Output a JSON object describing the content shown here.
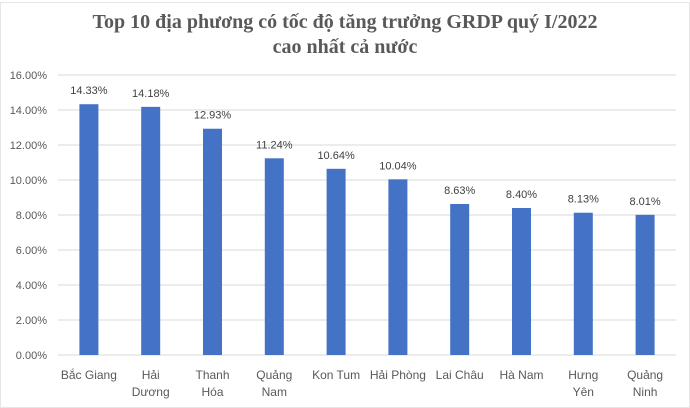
{
  "chart_data": {
    "type": "bar",
    "title_line1": "Top 10 địa phương có tốc độ tăng trưởng GRDP quý I/2022",
    "title_line2": "cao nhất cả nước",
    "categories": [
      "Bắc Giang",
      "Hải\nDương",
      "Thanh\nHóa",
      "Quảng\nNam",
      "Kon Tum",
      "Hải Phòng",
      "Lai Châu",
      "Hà Nam",
      "Hưng\nYên",
      "Quảng\nNinh"
    ],
    "values": [
      14.33,
      14.18,
      12.93,
      11.24,
      10.64,
      10.04,
      8.63,
      8.4,
      8.13,
      8.01
    ],
    "data_labels": [
      "14.33%",
      "14.18%",
      "12.93%",
      "11.24%",
      "10.64%",
      "10.04%",
      "8.63%",
      "8.40%",
      "8.13%",
      "8.01%"
    ],
    "y_ticks": [
      "0.00%",
      "2.00%",
      "4.00%",
      "6.00%",
      "8.00%",
      "10.00%",
      "12.00%",
      "14.00%",
      "16.00%"
    ],
    "ylim": [
      0,
      16
    ],
    "grid": true,
    "legend": "none",
    "bar_color": "#4472C4",
    "grid_color": "#d9d9d9"
  }
}
